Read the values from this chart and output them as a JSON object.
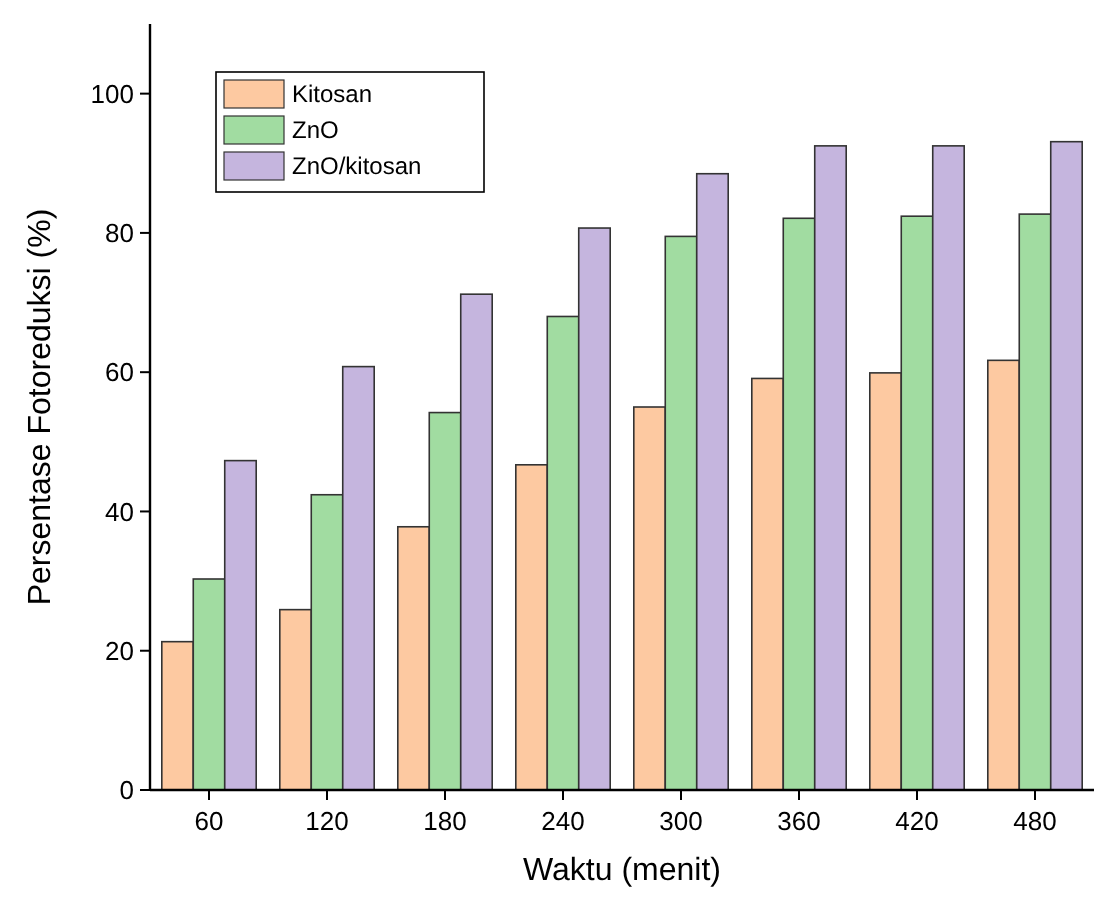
{
  "chart_data": {
    "type": "bar",
    "xlabel": "Waktu (menit)",
    "ylabel": "Persentase Fotoreduksi (%)",
    "categories": [
      "60",
      "120",
      "180",
      "240",
      "300",
      "360",
      "420",
      "480"
    ],
    "series": [
      {
        "name": "Kitosan",
        "color": "#fdc9a1",
        "values": [
          21.3,
          25.9,
          37.8,
          46.7,
          55,
          59.1,
          59.9,
          61.7
        ]
      },
      {
        "name": "ZnO",
        "color": "#a1dca1",
        "values": [
          30.3,
          42.4,
          54.2,
          68,
          79.5,
          82.1,
          82.4,
          82.7
        ]
      },
      {
        "name": "ZnO/kitosan",
        "color": "#c5b5de",
        "values": [
          47.3,
          60.8,
          71.2,
          80.7,
          88.5,
          92.5,
          92.5,
          93.1
        ]
      }
    ],
    "ylim": [
      0,
      110
    ],
    "yticks": [
      0,
      20,
      40,
      60,
      80,
      100
    ],
    "grid": false,
    "legend": "top left"
  }
}
